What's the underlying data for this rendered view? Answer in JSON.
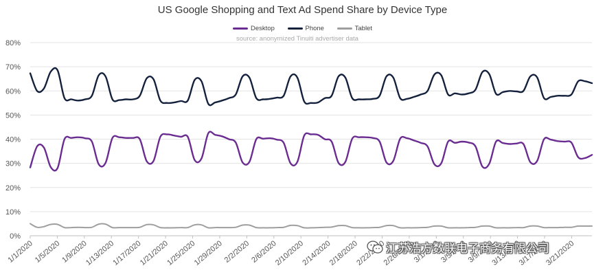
{
  "chart_data": {
    "type": "line",
    "title": "US Google Shopping and Text Ad Spend Share by Device Type",
    "subtitle": "source: anonymized Tinuiti advertiser data",
    "xlabel": "",
    "ylabel": "",
    "ylim": [
      0,
      0.8
    ],
    "y_ticks": [
      "0%",
      "10%",
      "20%",
      "30%",
      "40%",
      "50%",
      "60%",
      "70%",
      "80%"
    ],
    "grid": "horizontal",
    "legend_position": "top",
    "x_ticks": [
      "1/1/2020",
      "1/5/2020",
      "1/9/2020",
      "1/13/2020",
      "1/17/2020",
      "1/21/2020",
      "1/25/2020",
      "1/29/2020",
      "2/2/2020",
      "2/6/2020",
      "2/10/2020",
      "2/14/2020",
      "2/18/2020",
      "2/22/2020",
      "2/26/2020",
      "3/1/2020",
      "3/5/2020",
      "3/9/2020",
      "3/13/2020",
      "3/17/2020",
      "3/21/2020"
    ],
    "x_start": "2020-01-01",
    "x_end": "2020-03-24",
    "series": [
      {
        "name": "Desktop",
        "color": "#6a2c91",
        "values": [
          0.283,
          0.37,
          0.365,
          0.284,
          0.281,
          0.4,
          0.405,
          0.408,
          0.404,
          0.39,
          0.296,
          0.302,
          0.405,
          0.408,
          0.405,
          0.405,
          0.4,
          0.309,
          0.31,
          0.41,
          0.42,
          0.415,
          0.41,
          0.41,
          0.314,
          0.32,
          0.425,
          0.418,
          0.412,
          0.4,
          0.386,
          0.304,
          0.306,
          0.4,
          0.402,
          0.404,
          0.398,
          0.385,
          0.3,
          0.306,
          0.415,
          0.42,
          0.418,
          0.4,
          0.39,
          0.302,
          0.306,
          0.402,
          0.408,
          0.408,
          0.405,
          0.39,
          0.304,
          0.31,
          0.402,
          0.404,
          0.395,
          0.385,
          0.37,
          0.296,
          0.3,
          0.39,
          0.385,
          0.39,
          0.386,
          0.37,
          0.287,
          0.298,
          0.39,
          0.384,
          0.38,
          0.382,
          0.38,
          0.305,
          0.31,
          0.4,
          0.398,
          0.392,
          0.39,
          0.386,
          0.325,
          0.322,
          0.335
        ]
      },
      {
        "name": "Phone",
        "color": "#14213d",
        "values": [
          0.673,
          0.6,
          0.61,
          0.68,
          0.685,
          0.57,
          0.565,
          0.56,
          0.565,
          0.58,
          0.665,
          0.66,
          0.565,
          0.562,
          0.565,
          0.565,
          0.58,
          0.652,
          0.648,
          0.56,
          0.55,
          0.552,
          0.558,
          0.56,
          0.645,
          0.64,
          0.546,
          0.552,
          0.56,
          0.57,
          0.585,
          0.66,
          0.655,
          0.57,
          0.565,
          0.567,
          0.572,
          0.58,
          0.66,
          0.655,
          0.556,
          0.55,
          0.552,
          0.57,
          0.58,
          0.66,
          0.655,
          0.57,
          0.565,
          0.565,
          0.567,
          0.58,
          0.66,
          0.655,
          0.57,
          0.567,
          0.575,
          0.585,
          0.6,
          0.668,
          0.665,
          0.585,
          0.59,
          0.585,
          0.59,
          0.605,
          0.678,
          0.67,
          0.588,
          0.595,
          0.6,
          0.598,
          0.6,
          0.66,
          0.656,
          0.57,
          0.575,
          0.58,
          0.58,
          0.585,
          0.64,
          0.64,
          0.632
        ]
      },
      {
        "name": "Tablet",
        "color": "#9e9e9e",
        "values": [
          0.05,
          0.035,
          0.038,
          0.047,
          0.047,
          0.034,
          0.034,
          0.035,
          0.034,
          0.035,
          0.048,
          0.048,
          0.034,
          0.034,
          0.034,
          0.034,
          0.035,
          0.046,
          0.045,
          0.034,
          0.033,
          0.033,
          0.034,
          0.034,
          0.045,
          0.045,
          0.033,
          0.034,
          0.034,
          0.034,
          0.035,
          0.044,
          0.044,
          0.034,
          0.033,
          0.033,
          0.034,
          0.035,
          0.043,
          0.042,
          0.033,
          0.033,
          0.034,
          0.035,
          0.036,
          0.042,
          0.042,
          0.034,
          0.033,
          0.033,
          0.034,
          0.035,
          0.042,
          0.042,
          0.033,
          0.033,
          0.033,
          0.034,
          0.035,
          0.04,
          0.04,
          0.033,
          0.033,
          0.033,
          0.034,
          0.035,
          0.04,
          0.04,
          0.033,
          0.033,
          0.033,
          0.034,
          0.034,
          0.04,
          0.04,
          0.034,
          0.034,
          0.034,
          0.035,
          0.035,
          0.04,
          0.04,
          0.04
        ]
      }
    ]
  },
  "watermark": {
    "text": "江苏浩方数联电子商务有限公司",
    "icon": "wechat-icon"
  }
}
